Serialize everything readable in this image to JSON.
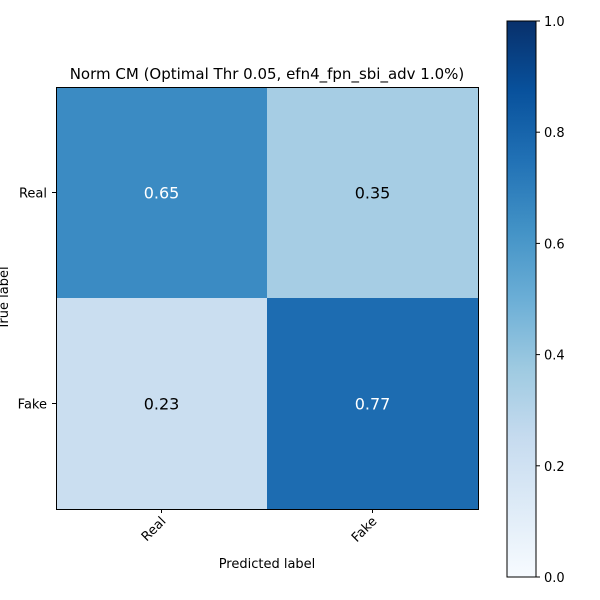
{
  "chart_data": {
    "type": "heatmap",
    "title": "Norm CM (Optimal Thr 0.05, efn4_fpn_sbi_adv 1.0%)",
    "xlabel": "Predicted label",
    "ylabel": "True label",
    "x_categories": [
      "Real",
      "Fake"
    ],
    "y_categories": [
      "Real",
      "Fake"
    ],
    "matrix": [
      [
        0.65,
        0.35
      ],
      [
        0.23,
        0.77
      ]
    ],
    "cell_labels": [
      [
        "0.65",
        "0.35"
      ],
      [
        "0.23",
        "0.77"
      ]
    ],
    "colormap": "Blues",
    "vmin": 0.0,
    "vmax": 1.0,
    "colorbar_ticks": [
      "0.0",
      "0.2",
      "0.4",
      "0.6",
      "0.8",
      "1.0"
    ],
    "colorbar_tick_values": [
      0.0,
      0.2,
      0.4,
      0.6,
      0.8,
      1.0
    ],
    "grid": false
  }
}
